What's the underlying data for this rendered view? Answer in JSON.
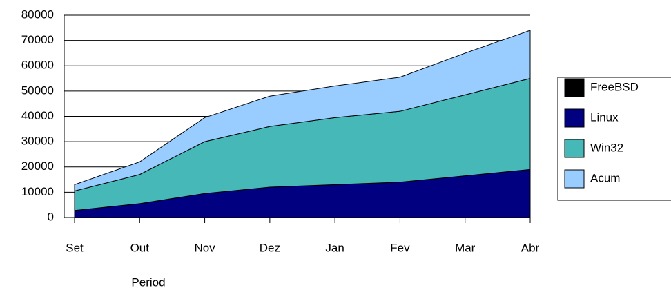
{
  "chart_data": {
    "type": "stacked_area",
    "categories": [
      "Set",
      "Out",
      "Nov",
      "Dez",
      "Jan",
      "Fev",
      "Mar",
      "Abr"
    ],
    "series": [
      {
        "name": "FreeBSD",
        "color": "#000000",
        "values": [
          0,
          0,
          0,
          0,
          0,
          0,
          0,
          0
        ]
      },
      {
        "name": "Linux",
        "color": "#000080",
        "values": [
          2800,
          5500,
          9500,
          12000,
          13000,
          14000,
          16500,
          19000
        ]
      },
      {
        "name": "Win32",
        "color": "#47b8b8",
        "values": [
          7700,
          11500,
          20500,
          24000,
          26500,
          28000,
          32000,
          36000
        ]
      },
      {
        "name": "Acum",
        "color": "#99ccff",
        "values": [
          2500,
          5000,
          9500,
          12000,
          12500,
          13500,
          16500,
          19000
        ]
      }
    ],
    "xlabel": "Period",
    "ylim": [
      0,
      80000
    ],
    "yticks": [
      0,
      10000,
      20000,
      30000,
      40000,
      50000,
      60000,
      70000,
      80000
    ],
    "grid": true,
    "legend": "right"
  }
}
